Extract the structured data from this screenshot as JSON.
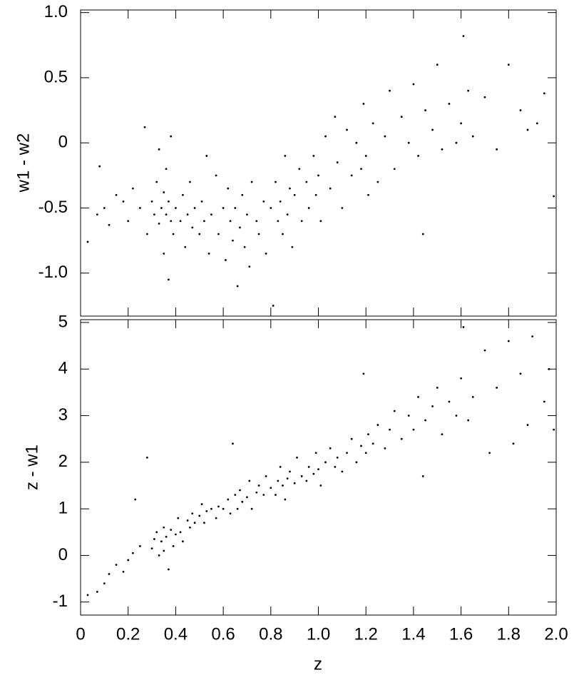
{
  "chart_data": [
    {
      "type": "scatter",
      "ylabel": "w1 - w2",
      "xlim": [
        0,
        2
      ],
      "ylim": [
        -1.33,
        1.02
      ],
      "yticks": [
        {
          "value": 1,
          "label": "1.0"
        },
        0.5,
        0,
        -0.5,
        {
          "value": -1,
          "label": "-1.0"
        }
      ],
      "color": "#000000",
      "x": [
        0.03,
        0.07,
        0.08,
        0.1,
        0.12,
        0.15,
        0.18,
        0.2,
        0.22,
        0.25,
        0.27,
        0.28,
        0.3,
        0.31,
        0.32,
        0.33,
        0.33,
        0.34,
        0.35,
        0.35,
        0.36,
        0.36,
        0.37,
        0.37,
        0.38,
        0.38,
        0.39,
        0.4,
        0.42,
        0.43,
        0.44,
        0.45,
        0.46,
        0.47,
        0.48,
        0.5,
        0.51,
        0.52,
        0.53,
        0.54,
        0.55,
        0.57,
        0.58,
        0.6,
        0.61,
        0.62,
        0.63,
        0.64,
        0.65,
        0.66,
        0.67,
        0.68,
        0.69,
        0.7,
        0.71,
        0.72,
        0.74,
        0.75,
        0.77,
        0.78,
        0.8,
        0.81,
        0.82,
        0.83,
        0.84,
        0.85,
        0.86,
        0.87,
        0.88,
        0.89,
        0.9,
        0.92,
        0.93,
        0.95,
        0.96,
        0.98,
        0.99,
        1.0,
        1.01,
        1.03,
        1.05,
        1.07,
        1.08,
        1.1,
        1.12,
        1.14,
        1.16,
        1.18,
        1.19,
        1.2,
        1.21,
        1.23,
        1.25,
        1.28,
        1.3,
        1.32,
        1.35,
        1.38,
        1.4,
        1.42,
        1.44,
        1.45,
        1.48,
        1.5,
        1.52,
        1.55,
        1.58,
        1.6,
        1.61,
        1.63,
        1.65,
        1.7,
        1.75,
        1.8,
        1.85,
        1.88,
        1.92,
        1.95,
        1.99
      ],
      "values": [
        -0.76,
        -0.55,
        -0.18,
        -0.5,
        -0.63,
        -0.4,
        -0.45,
        -0.6,
        -0.35,
        -0.5,
        0.12,
        -0.7,
        -0.45,
        -0.55,
        -0.3,
        -0.62,
        -0.05,
        -0.5,
        -0.38,
        -0.85,
        -0.55,
        -0.2,
        -0.45,
        -1.05,
        -0.6,
        0.05,
        -0.7,
        -0.5,
        -0.6,
        -0.4,
        -0.8,
        -0.55,
        -0.3,
        -0.65,
        -0.5,
        -0.7,
        -0.45,
        -0.6,
        -0.1,
        -0.85,
        -0.55,
        -0.25,
        -0.7,
        -0.5,
        -0.9,
        -0.35,
        -0.6,
        -0.75,
        -0.5,
        -1.1,
        -0.65,
        -0.4,
        -0.8,
        -0.55,
        -0.95,
        -0.3,
        -0.6,
        -0.7,
        -0.45,
        -0.85,
        -0.5,
        -1.25,
        -0.3,
        -0.6,
        -0.45,
        -0.7,
        -0.1,
        -0.55,
        -0.35,
        -0.8,
        -0.4,
        -0.2,
        -0.6,
        -0.3,
        -0.5,
        -0.1,
        -0.4,
        -0.25,
        -0.6,
        0.05,
        -0.35,
        0.2,
        -0.15,
        -0.5,
        0.1,
        -0.25,
        0.0,
        -0.2,
        0.3,
        -0.1,
        -0.4,
        0.15,
        -0.3,
        0.05,
        0.4,
        -0.2,
        0.2,
        0.0,
        0.45,
        -0.1,
        -0.7,
        0.25,
        0.1,
        0.6,
        -0.05,
        0.3,
        0.0,
        0.15,
        0.82,
        0.4,
        0.05,
        0.35,
        -0.05,
        0.6,
        0.25,
        0.1,
        0.15,
        0.38,
        -0.41
      ]
    },
    {
      "type": "scatter",
      "xlabel": "z",
      "ylabel": "z - w1",
      "xlim": [
        0,
        2
      ],
      "ylim": [
        -1.28,
        5.06
      ],
      "xticks": [
        0,
        0.2,
        0.4,
        0.6,
        0.8,
        {
          "value": 1,
          "label": "1.0"
        },
        1.2,
        1.4,
        1.6,
        1.8,
        {
          "value": 2,
          "label": "2.0"
        }
      ],
      "yticks": [
        -1,
        0,
        1,
        2,
        3,
        4,
        5
      ],
      "color": "#000000",
      "x": [
        0.03,
        0.07,
        0.1,
        0.12,
        0.15,
        0.18,
        0.2,
        0.22,
        0.23,
        0.25,
        0.28,
        0.3,
        0.31,
        0.32,
        0.33,
        0.34,
        0.35,
        0.35,
        0.36,
        0.37,
        0.38,
        0.39,
        0.4,
        0.41,
        0.42,
        0.43,
        0.45,
        0.46,
        0.47,
        0.48,
        0.5,
        0.51,
        0.52,
        0.53,
        0.55,
        0.57,
        0.58,
        0.6,
        0.62,
        0.63,
        0.64,
        0.65,
        0.66,
        0.67,
        0.68,
        0.7,
        0.71,
        0.72,
        0.74,
        0.75,
        0.77,
        0.78,
        0.8,
        0.82,
        0.83,
        0.84,
        0.85,
        0.86,
        0.87,
        0.88,
        0.9,
        0.91,
        0.93,
        0.95,
        0.96,
        0.98,
        0.99,
        1.0,
        1.01,
        1.03,
        1.05,
        1.07,
        1.08,
        1.1,
        1.12,
        1.14,
        1.16,
        1.18,
        1.19,
        1.2,
        1.21,
        1.23,
        1.25,
        1.28,
        1.3,
        1.32,
        1.35,
        1.38,
        1.4,
        1.42,
        1.44,
        1.45,
        1.48,
        1.5,
        1.52,
        1.55,
        1.58,
        1.6,
        1.61,
        1.63,
        1.65,
        1.7,
        1.72,
        1.75,
        1.8,
        1.82,
        1.85,
        1.88,
        1.9,
        1.95,
        1.97,
        1.99
      ],
      "values": [
        -0.85,
        -0.78,
        -0.6,
        -0.4,
        -0.2,
        -0.35,
        -0.1,
        0.05,
        1.2,
        0.2,
        2.1,
        0.15,
        0.35,
        0.5,
        0.0,
        0.3,
        0.6,
        0.1,
        0.4,
        -0.3,
        0.55,
        0.2,
        0.45,
        0.8,
        0.5,
        0.3,
        0.75,
        0.6,
        0.9,
        0.7,
        0.85,
        1.1,
        0.7,
        0.95,
        1.0,
        0.8,
        1.05,
        1.0,
        1.2,
        0.9,
        2.4,
        1.3,
        1.0,
        1.4,
        1.15,
        1.25,
        1.6,
        1.0,
        1.35,
        1.5,
        1.3,
        1.7,
        1.45,
        1.3,
        1.6,
        1.9,
        1.5,
        1.2,
        1.65,
        1.8,
        1.55,
        2.1,
        1.7,
        1.6,
        1.9,
        1.75,
        2.2,
        1.85,
        1.5,
        2.0,
        2.3,
        1.9,
        2.1,
        1.8,
        2.2,
        2.5,
        2.0,
        2.35,
        3.9,
        2.2,
        2.6,
        2.4,
        2.8,
        2.3,
        2.7,
        3.1,
        2.5,
        3.0,
        2.7,
        3.4,
        1.7,
        2.9,
        3.2,
        3.6,
        2.6,
        3.3,
        3.0,
        3.8,
        4.9,
        2.9,
        3.4,
        4.4,
        2.2,
        3.6,
        4.6,
        2.4,
        3.9,
        2.8,
        4.7,
        3.3,
        4.0,
        2.7
      ]
    }
  ]
}
